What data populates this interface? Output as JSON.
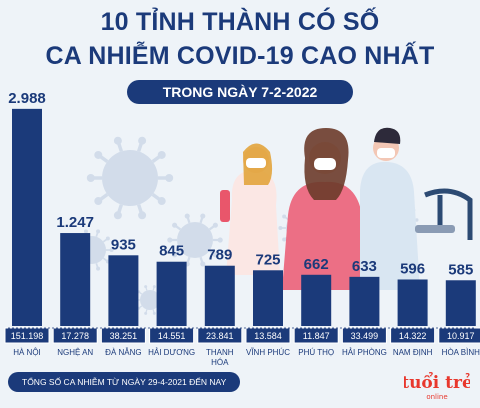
{
  "header": {
    "title_line1": "10 TỈNH THÀNH CÓ SỐ",
    "title_line2": "CA NHIỄM COVID-19 CAO NHẤT",
    "date_label": "TRONG NGÀY 7-2-2022"
  },
  "footnote": "TỔNG SỐ CA NHIỄM TỪ NGÀY 29-4-2021 ĐẾN NAY",
  "logo": {
    "text_main": "tuổi trẻ",
    "text_sub": "online"
  },
  "colors": {
    "bar": "#1b3a7a",
    "title": "#1b3a7a",
    "total_box": "#1b3a7a",
    "axis": "#1b3a7a",
    "background": "#eef3f8",
    "logo": "#e8372d"
  },
  "chart_data": {
    "type": "bar",
    "title": "",
    "xlabel": "",
    "ylabel": "",
    "ylim": [
      0,
      3000
    ],
    "grid": false,
    "categories": [
      "HÀ NỘI",
      "NGHỆ AN",
      "ĐÀ NẴNG",
      "HẢI DƯƠNG",
      "THANH HÓA",
      "VĨNH PHÚC",
      "PHÚ THỌ",
      "HẢI PHÒNG",
      "NAM ĐỊNH",
      "HÒA BÌNH"
    ],
    "category_lines": [
      [
        "HÀ NỘI"
      ],
      [
        "NGHỆ AN"
      ],
      [
        "ĐÀ NẴNG"
      ],
      [
        "HẢI DƯƠNG"
      ],
      [
        "THANH",
        "HÓA"
      ],
      [
        "VĨNH PHÚC"
      ],
      [
        "PHÚ THỌ"
      ],
      [
        "HẢI PHÒNG"
      ],
      [
        "NAM ĐỊNH"
      ],
      [
        "HÒA BÌNH"
      ]
    ],
    "values": [
      2988,
      1247,
      935,
      845,
      789,
      725,
      662,
      633,
      596,
      585
    ],
    "value_labels": [
      "2.988",
      "1.247",
      "935",
      "845",
      "789",
      "725",
      "662",
      "633",
      "596",
      "585"
    ],
    "totals": [
      151198,
      17278,
      38251,
      14551,
      23841,
      13584,
      11847,
      33499,
      14322,
      10917
    ],
    "total_labels": [
      "151.198",
      "17.278",
      "38.251",
      "14.551",
      "23.841",
      "13.584",
      "11.847",
      "33.499",
      "14.322",
      "10.917"
    ]
  }
}
